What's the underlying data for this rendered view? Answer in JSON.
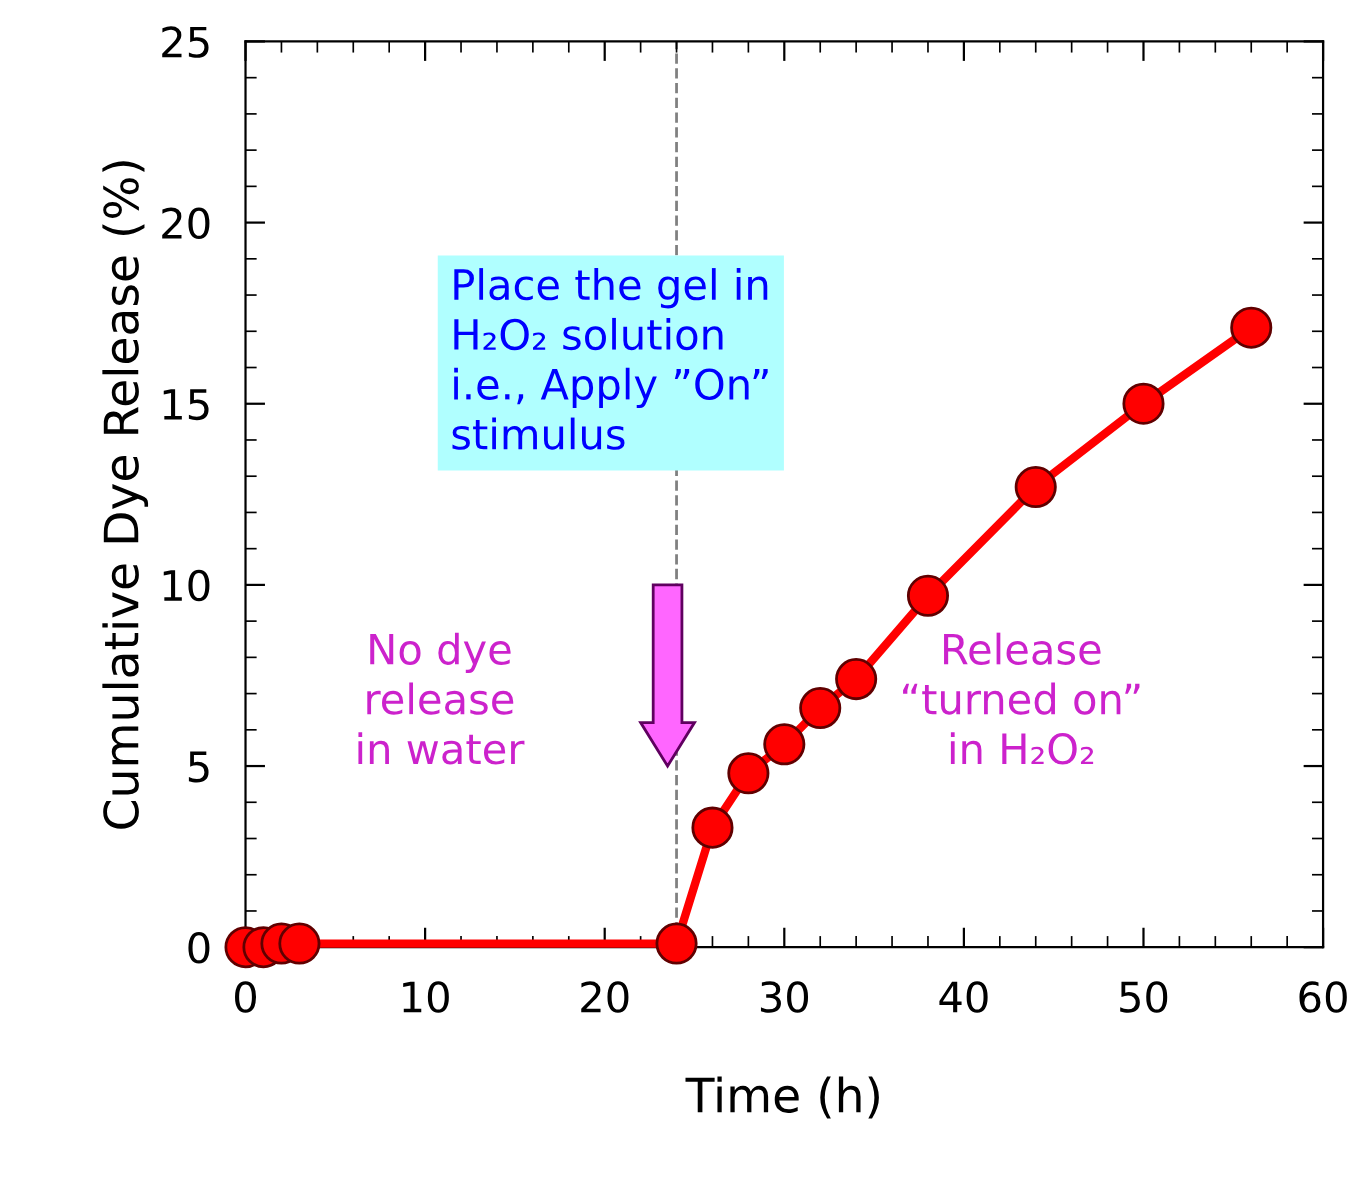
{
  "chart_data": {
    "type": "line",
    "xlabel": "Time (h)",
    "ylabel": "Cumulative Dye Release (%)",
    "x": [
      0,
      1,
      2,
      3,
      24,
      26,
      28,
      30,
      32,
      34,
      38,
      44,
      50,
      56
    ],
    "series": [
      {
        "color": "#ff0000",
        "values": [
          0,
          0,
          0.1,
          0.1,
          0.1,
          3.3,
          4.8,
          5.6,
          6.6,
          7.4,
          9.7,
          12.7,
          15.0,
          17.1
        ]
      }
    ],
    "xlim": [
      0,
      60
    ],
    "xticks": [
      0,
      10,
      20,
      30,
      40,
      50,
      60
    ],
    "ylim": [
      0,
      25
    ],
    "yticks": [
      0,
      5,
      10,
      15,
      20,
      25
    ],
    "ref_lines": [
      {
        "axis": "x",
        "value": 24,
        "color": "#808080",
        "line_style": "dashed"
      }
    ],
    "annotations": [
      "Place the gel in\nH₂O₂ solution\ni.e., Apply ”On”\nstimulus",
      "No dye\nrelease\nin water",
      "Release\n“turned on”\nin H₂O₂"
    ],
    "marker": "circle",
    "line_style": "solid",
    "grid": false,
    "legend": false
  }
}
